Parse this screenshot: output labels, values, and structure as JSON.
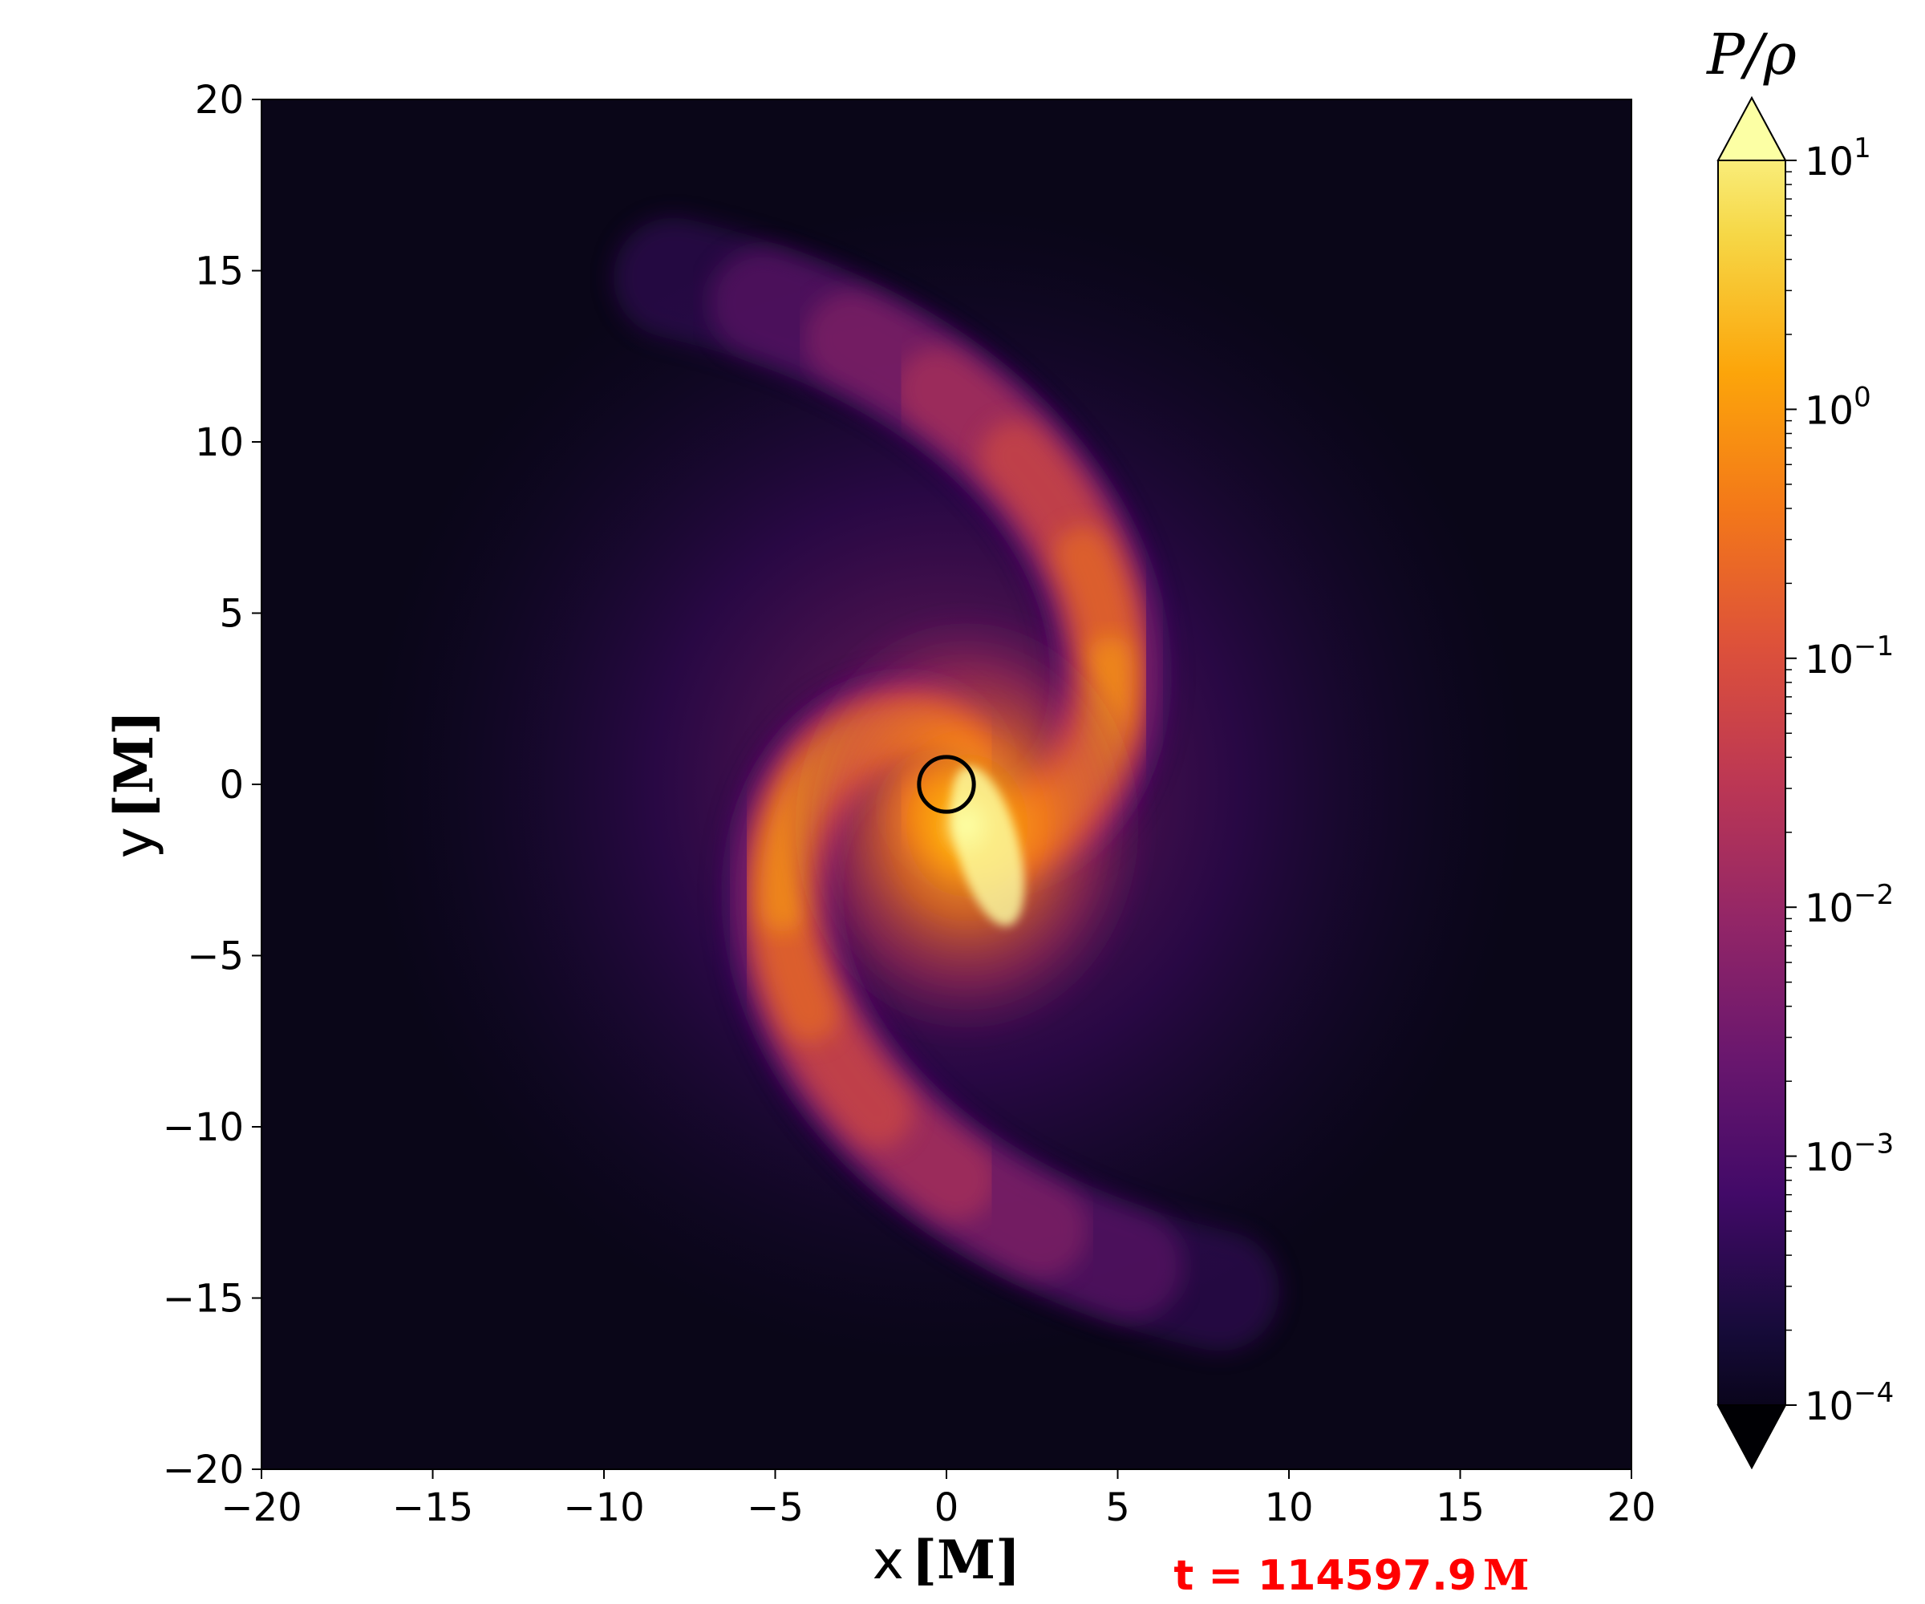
{
  "chart_data": {
    "type": "heatmap",
    "quantity": "P/ρ",
    "colorbar": {
      "label": "P/ρ",
      "scale": "log",
      "range": [
        0.0001,
        10
      ],
      "colormap": "inferno",
      "extend": "both",
      "ticks": [
        {
          "value": 10,
          "base": "10",
          "exp": "1"
        },
        {
          "value": 1,
          "base": "10",
          "exp": "0"
        },
        {
          "value": 0.1,
          "base": "10",
          "exp": "−1"
        },
        {
          "value": 0.01,
          "base": "10",
          "exp": "−2"
        },
        {
          "value": 0.001,
          "base": "10",
          "exp": "−3"
        },
        {
          "value": 0.0001,
          "base": "10",
          "exp": "−4"
        }
      ]
    },
    "x_axis": {
      "label": "x",
      "unit": "[M]",
      "range": [
        -20,
        20
      ],
      "ticks": [
        -20,
        -15,
        -10,
        -5,
        0,
        5,
        10,
        15,
        20
      ]
    },
    "y_axis": {
      "label": "y",
      "unit": "[M]",
      "range": [
        -20,
        20
      ],
      "ticks": [
        -20,
        -15,
        -10,
        -5,
        0,
        5,
        10,
        15,
        20
      ]
    },
    "tick_text": {
      "x": [
        "−20",
        "−15",
        "−10",
        "−5",
        "0",
        "5",
        "10",
        "15",
        "20"
      ],
      "y": [
        "−20",
        "−15",
        "−10",
        "−5",
        "0",
        "5",
        "10",
        "15",
        "20"
      ]
    },
    "horizon_circle": {
      "center": [
        0,
        0
      ],
      "radius": 0.8
    },
    "annotation": {
      "text": "t = 114597.9",
      "unit": "M",
      "color": "#ff0000"
    },
    "field_features": {
      "hot_core_center": [
        0.6,
        -1.2
      ],
      "spiral_arms": 2,
      "spiral_sense": "counter-clockwise inward",
      "background_level": 0.0002
    }
  }
}
